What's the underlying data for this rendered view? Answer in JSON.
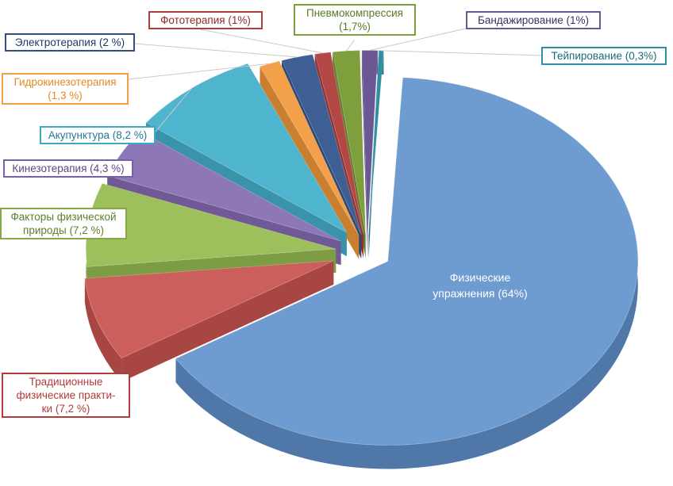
{
  "chart_data": {
    "type": "pie",
    "style": "3d-exploded",
    "slices": [
      {
        "label": "Физические\nупражнения (64%)",
        "value": 64,
        "color": "#6e9bd0",
        "side": "#4f78a9",
        "edge": "#3a5f8f",
        "label_color": "#ffffff"
      },
      {
        "label": "Традиционные\nфизические практи-\nки (7,2 %)",
        "value": 7.2,
        "color": "#cc5f5c",
        "side": "#a84643",
        "edge": "#b23c3a",
        "label_color": "#b23c3a"
      },
      {
        "label": "Факторы физической\nприроды (7,2 %)",
        "value": 7.2,
        "color": "#9dbf5c",
        "side": "#7e9c44",
        "edge": "#86a847",
        "label_color": "#5f7e2a"
      },
      {
        "label": "Кинезотерапия (4,3 %)",
        "value": 4.3,
        "color": "#8e77b7",
        "side": "#6f5a95",
        "edge": "#7a5fa8",
        "label_color": "#5d4686"
      },
      {
        "label": "Акупунктура (8,2 %)",
        "value": 8.2,
        "color": "#4fb5cf",
        "side": "#3a93ab",
        "edge": "#3aa9c7",
        "label_color": "#25799a"
      },
      {
        "label": "Гидрокинезотерапия\n(1,3 %)",
        "value": 1.3,
        "color": "#f2a04a",
        "side": "#c97f30",
        "edge": "#f2a04a",
        "label_color": "#e48a27"
      },
      {
        "label": "Электротерапия (2 %)",
        "value": 2,
        "color": "#3d5f93",
        "side": "#2c4772",
        "edge": "#2e4f80",
        "label_color": "#1f3a66"
      },
      {
        "label": "Фототерапия (1%)",
        "value": 1,
        "color": "#b34744",
        "side": "#8d3331",
        "edge": "#b23c3a",
        "label_color": "#8d2b29"
      },
      {
        "label": "Пневмокомпрессия\n(1,7%)",
        "value": 1.7,
        "color": "#7f9e3c",
        "side": "#617c2c",
        "edge": "#7f9e3c",
        "label_color": "#5a7a22"
      },
      {
        "label": "Бандажирование (1%)",
        "value": 1,
        "color": "#6a5794",
        "side": "#513f74",
        "edge": "#6a5794",
        "label_color": "#3f2f63"
      },
      {
        "label": "Тейпирование (0,3%)",
        "value": 0.3,
        "color": "#2f8ea3",
        "side": "#21707f",
        "edge": "#2f8ea3",
        "label_color": "#1d6b7c"
      }
    ]
  }
}
